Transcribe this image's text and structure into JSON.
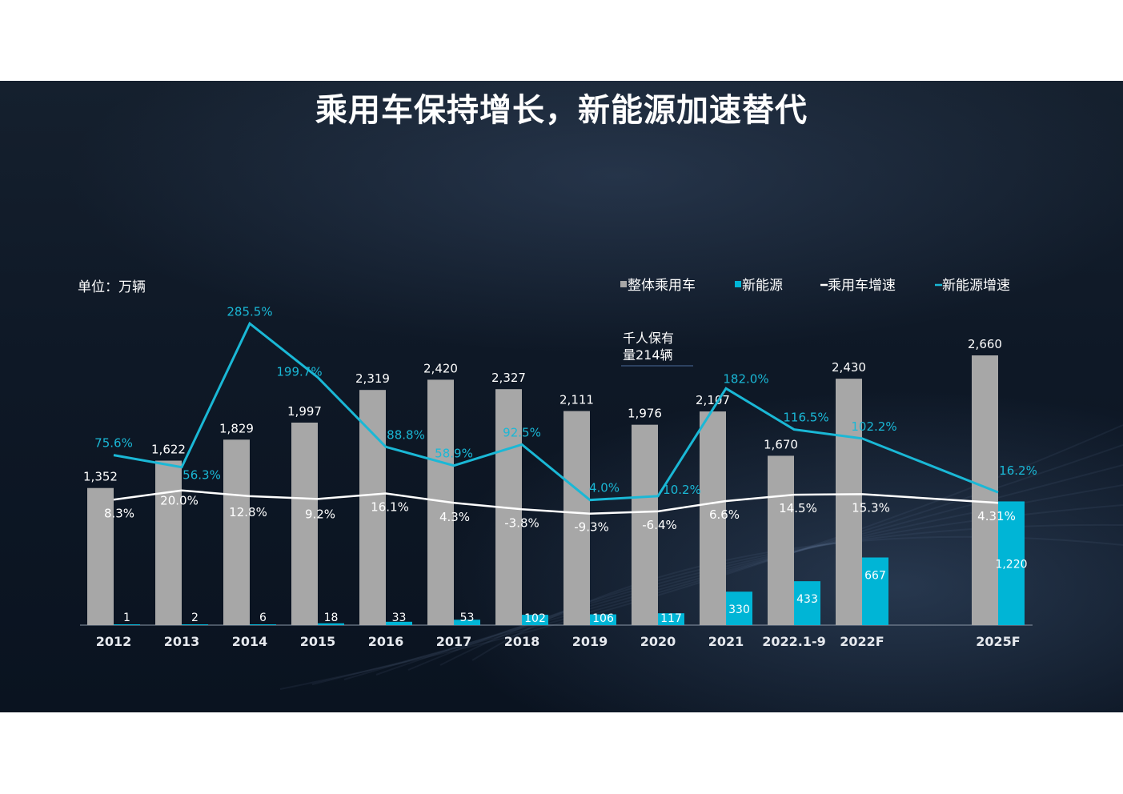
{
  "title": "乘用车保持增长，新能源加速替代",
  "unit_label": "单位：万辆",
  "annotation": "千人保有\n量214辆",
  "legend": [
    {
      "label": "整体乘用车",
      "kind": "bar",
      "color": "#a7a7a7"
    },
    {
      "label": "新能源",
      "kind": "bar",
      "color": "#00b5d6"
    },
    {
      "label": "乘用车增速",
      "kind": "line",
      "color": "#ffffff"
    },
    {
      "label": "新能源增速",
      "kind": "line",
      "color": "#1ab8d6"
    }
  ],
  "chart_data": {
    "type": "bar",
    "categories": [
      "2012",
      "2013",
      "2014",
      "2015",
      "2016",
      "2017",
      "2018",
      "2019",
      "2020",
      "2021",
      "2022.1-9",
      "2022F",
      "2025F"
    ],
    "series": [
      {
        "name": "整体乘用车",
        "type": "bar",
        "color": "#a7a7a7",
        "values": [
          1352,
          1622,
          1829,
          1997,
          2319,
          2420,
          2327,
          2111,
          1976,
          2107,
          1670,
          2430,
          2660
        ],
        "labels": [
          "1,352",
          "1,622",
          "1,829",
          "1,997",
          "2,319",
          "2,420",
          "2,327",
          "2,111",
          "1,976",
          "2,107",
          "1,670",
          "2,430",
          "2,660"
        ]
      },
      {
        "name": "新能源",
        "type": "bar",
        "color": "#00b5d6",
        "values": [
          1,
          2,
          6,
          18,
          33,
          53,
          102,
          106,
          117,
          330,
          433,
          667,
          1220
        ],
        "labels": [
          "1",
          "2",
          "6",
          "18",
          "33",
          "53",
          "102",
          "106",
          "117",
          "330",
          "433",
          "667",
          "1,220"
        ]
      },
      {
        "name": "乘用车增速",
        "type": "line",
        "color": "#ffffff",
        "values": [
          8.3,
          20.0,
          12.8,
          9.2,
          16.1,
          4.3,
          -3.8,
          -9.3,
          -6.4,
          6.6,
          14.5,
          15.3,
          4.31
        ],
        "labels": [
          "8.3%",
          "20.0%",
          "12.8%",
          "9.2%",
          "16.1%",
          "4.3%",
          "-3.8%",
          "-9.3%",
          "-6.4%",
          "6.6%",
          "14.5%",
          "15.3%",
          "4.31%"
        ]
      },
      {
        "name": "新能源增速",
        "type": "line",
        "color": "#1ab8d6",
        "values": [
          75.6,
          56.3,
          285.5,
          199.7,
          88.8,
          58.9,
          92.5,
          4.0,
          10.2,
          182.0,
          116.5,
          102.2,
          16.2
        ],
        "labels": [
          "75.6%",
          "56.3%",
          "285.5%",
          "199.7%",
          "88.8%",
          "58.9%",
          "92.5%",
          "4.0%",
          "10.2%",
          "182.0%",
          "116.5%",
          "102.2%",
          "16.2%"
        ]
      }
    ]
  }
}
